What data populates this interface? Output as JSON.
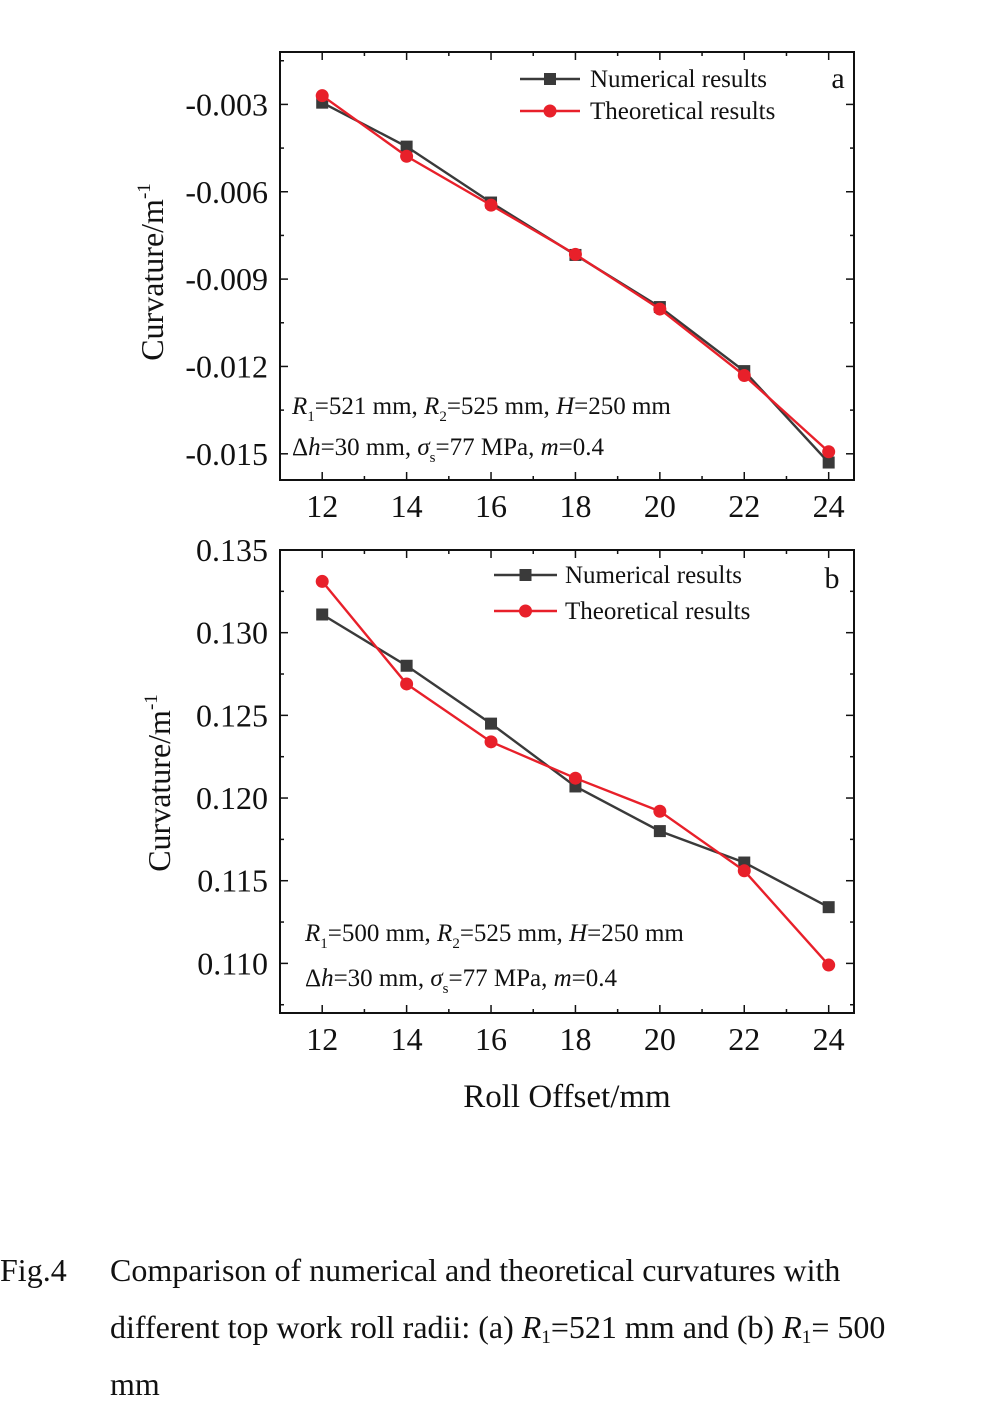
{
  "chart_data": [
    {
      "type": "line",
      "panel_label": "a",
      "x": [
        12,
        14,
        16,
        18,
        20,
        22,
        24
      ],
      "series": [
        {
          "name": "Numerical results",
          "color": "#3a3a3a",
          "marker": "square",
          "values": [
            -0.00294,
            -0.00445,
            -0.00637,
            -0.00817,
            -0.00996,
            -0.01216,
            -0.0153
          ]
        },
        {
          "name": "Theoretical results",
          "color": "#e8202a",
          "marker": "circle",
          "values": [
            -0.0027,
            -0.00478,
            -0.00646,
            -0.00815,
            -0.01003,
            -0.01231,
            -0.01493
          ]
        }
      ],
      "xlim": [
        11,
        24.6
      ],
      "ylim": [
        -0.0159,
        -0.0012
      ],
      "xticks": [
        "12",
        "14",
        "16",
        "18",
        "20",
        "22",
        "24"
      ],
      "yticks": [
        "-0.003",
        "-0.006",
        "-0.009",
        "-0.012",
        "-0.015"
      ],
      "ytick_values": [
        -0.003,
        -0.006,
        -0.009,
        -0.012,
        -0.015
      ],
      "ylabel": "Curvature/m",
      "ylabel_sup": "-1",
      "legend_position": "top-right",
      "params": {
        "r1": "=521 mm,",
        "r2": "=525 mm,",
        "h": "=250 mm",
        "dh": "=30 mm,",
        "sigma": "=77 MPa,",
        "m": "=0.4"
      }
    },
    {
      "type": "line",
      "panel_label": "b",
      "x": [
        12,
        14,
        16,
        18,
        20,
        22,
        24
      ],
      "series": [
        {
          "name": "Numerical results",
          "color": "#3a3a3a",
          "marker": "square",
          "values": [
            0.1311,
            0.128,
            0.1245,
            0.1207,
            0.118,
            0.1161,
            0.1134
          ]
        },
        {
          "name": "Theoretical results",
          "color": "#e8202a",
          "marker": "circle",
          "values": [
            0.1331,
            0.1269,
            0.1234,
            0.1212,
            0.1192,
            0.1156,
            0.1099
          ]
        }
      ],
      "xlim": [
        11,
        24.6
      ],
      "ylim": [
        0.107,
        0.135
      ],
      "xticks": [
        "12",
        "14",
        "16",
        "18",
        "20",
        "22",
        "24"
      ],
      "yticks": [
        "0.135",
        "0.130",
        "0.125",
        "0.120",
        "0.115",
        "0.110"
      ],
      "ytick_values": [
        0.135,
        0.13,
        0.125,
        0.12,
        0.115,
        0.11
      ],
      "ylabel": "Curvature/m",
      "ylabel_sup": "-1",
      "xlabel": "Roll Offset/mm",
      "legend_position": "top-right",
      "params": {
        "r1": "=500 mm,",
        "r2": "=525 mm,",
        "h": "=250 mm",
        "dh": "=30 mm,",
        "sigma": "=77 MPa,",
        "m": "=0.4"
      }
    }
  ],
  "caption": {
    "label": "Fig.4",
    "text_1": "Comparison of numerical and theoretical curvatures with different top work roll radii: (a) ",
    "sym_r": "R",
    "sub_1": "1",
    "text_2": "=521 mm and (b) ",
    "text_3": "= 500 mm"
  }
}
